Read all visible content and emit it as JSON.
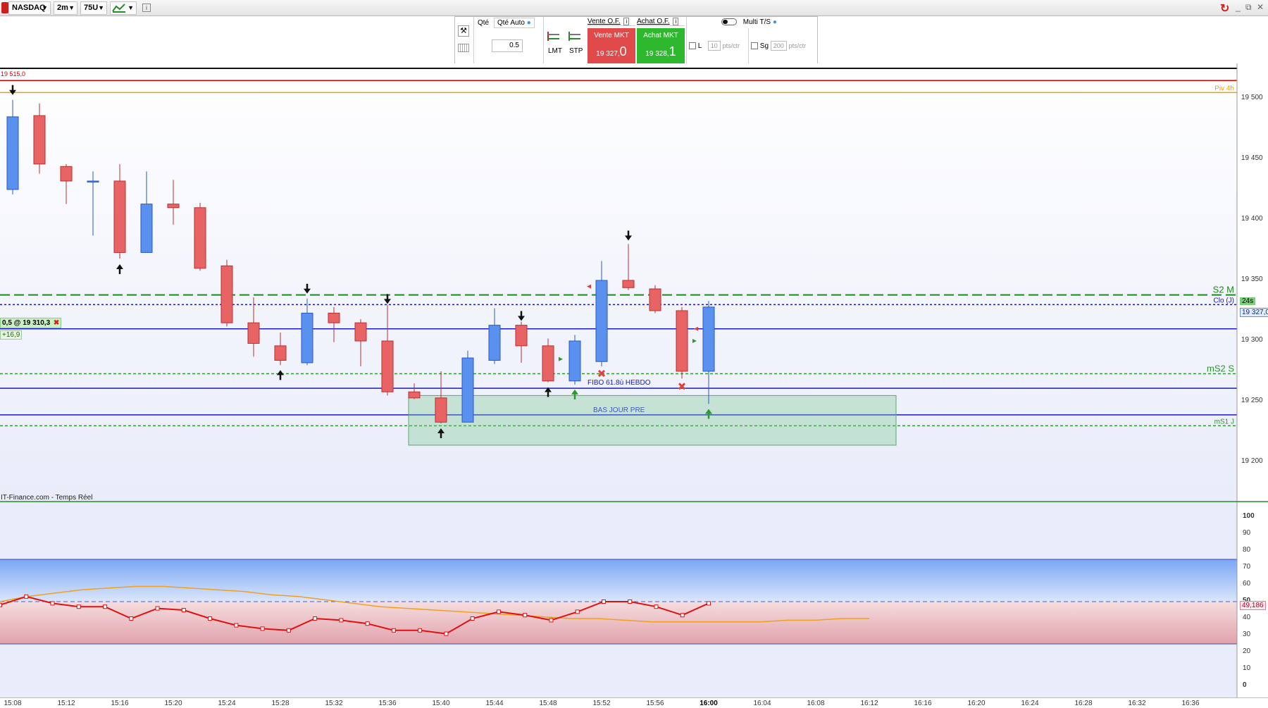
{
  "toolbar": {
    "symbol": "NASDAQ",
    "period": "2m",
    "units": "75U",
    "win_controls": [
      "_",
      "⧉",
      "✕"
    ]
  },
  "order_panel": {
    "qty_label": "Qté",
    "qty_auto_label": "Qté Auto",
    "qty_value": "0.5",
    "lmt_label": "LMT",
    "stp_label": "STP",
    "sell_of_label": "Vente O.F.",
    "buy_of_label": "Achat O.F.",
    "sell_mkt_label": "Vente MKT",
    "sell_mkt_price_small": "19 327,",
    "sell_mkt_price_big": "0",
    "buy_mkt_label": "Achat MKT",
    "buy_mkt_price_small": "19 328,",
    "buy_mkt_price_big": "1",
    "multi_ts_label": "Multi T/S",
    "l_label": "L",
    "l_value": "10",
    "l_unit": "pts/ctr",
    "sg_label": "Sg",
    "sg_value": "200",
    "sg_unit": "pts/ctr",
    "sell_color": "#e04a4a",
    "buy_color": "#2eb82e"
  },
  "chart": {
    "source_label": "IT-Finance.com - Temps Réel",
    "position_tag": "0,5 @ 19 310,3",
    "pnl_tag": "+16,9",
    "current_price_tag": "19 327,0",
    "countdown_tag": "24s",
    "high_line_tag": "19 515,0",
    "levels": [
      {
        "price": 19515,
        "label": "",
        "color": "#e00000",
        "style": "solid"
      },
      {
        "price": 19505,
        "label": "Piv 4h",
        "color": "#f0a000",
        "style": "solid"
      },
      {
        "price": 19338,
        "label": "S2 M",
        "color": "#1a8a1a",
        "style": "dashed-long"
      },
      {
        "price": 19330,
        "label": "Clo (J)",
        "color": "#1a1aa0",
        "style": "dotted"
      },
      {
        "price": 19310,
        "label": "",
        "color": "#1a1ad0",
        "style": "solid"
      },
      {
        "price": 19273,
        "label": "mS2 S",
        "color": "#2a9a2a",
        "style": "dashed"
      },
      {
        "price": 19261,
        "label": "FIBO 61.8ù HEBDO",
        "color": "#1a1ad0",
        "style": "solid"
      },
      {
        "price": 19239,
        "label": "BAS JOUR PRE",
        "color": "#1a1ad0",
        "style": "solid"
      },
      {
        "price": 19230,
        "label": "mS1 J",
        "color": "#2a9a2a",
        "style": "dashed"
      }
    ],
    "zone": {
      "price_top": 19255,
      "price_bottom": 19214,
      "time_start": "15:38",
      "time_end": "16:14"
    },
    "y_ticks": [
      "19 500",
      "19 450",
      "19 400",
      "19 350",
      "19 300",
      "19 250",
      "19 200"
    ],
    "x_ticks": [
      "15:08",
      "15:12",
      "15:16",
      "15:20",
      "15:24",
      "15:28",
      "15:32",
      "15:36",
      "15:40",
      "15:44",
      "15:48",
      "15:52",
      "15:56",
      "16:00",
      "16:04",
      "16:08",
      "16:12",
      "16:16",
      "16:20",
      "16:24",
      "16:28",
      "16:32",
      "16:36"
    ],
    "x_current": "16:00"
  },
  "chart_data": {
    "type": "candlestick",
    "x": [
      "15:08",
      "15:10",
      "15:12",
      "15:14",
      "15:16",
      "15:18",
      "15:20",
      "15:22",
      "15:24",
      "15:26",
      "15:28",
      "15:30",
      "15:32",
      "15:34",
      "15:36",
      "15:38",
      "15:40",
      "15:42",
      "15:44",
      "15:46",
      "15:48",
      "15:50",
      "15:52",
      "15:54",
      "15:56",
      "15:58",
      "16:00"
    ],
    "open": [
      19425,
      19486,
      19444,
      19432,
      19432,
      19373,
      19413,
      19410,
      19362,
      19315,
      19296,
      19282,
      19323,
      19315,
      19300,
      19258,
      19253,
      19233,
      19284,
      19313,
      19296,
      19267,
      19283,
      19350,
      19343,
      19325,
      19275
    ],
    "high": [
      19499,
      19496,
      19446,
      19440,
      19446,
      19440,
      19433,
      19414,
      19367,
      19336,
      19307,
      19335,
      19328,
      19318,
      19330,
      19265,
      19275,
      19292,
      19327,
      19316,
      19302,
      19305,
      19366,
      19380,
      19346,
      19328,
      19333
    ],
    "low": [
      19421,
      19438,
      19413,
      19387,
      19368,
      19373,
      19396,
      19358,
      19312,
      19287,
      19280,
      19280,
      19299,
      19279,
      19255,
      19252,
      19232,
      19233,
      19281,
      19282,
      19266,
      19264,
      19279,
      19342,
      19323,
      19269,
      19248
    ],
    "close": [
      19485,
      19446,
      19432,
      19432,
      19373,
      19413,
      19410,
      19360,
      19315,
      19298,
      19284,
      19323,
      19315,
      19300,
      19258,
      19253,
      19233,
      19286,
      19313,
      19296,
      19267,
      19300,
      19350,
      19344,
      19325,
      19275,
      19328
    ],
    "ylim": [
      19180,
      19515
    ],
    "oscillator": {
      "last_value": "49,186",
      "y_ticks": [
        "100",
        "90",
        "80",
        "70",
        "60",
        "50",
        "40",
        "30",
        "20",
        "10",
        "0"
      ],
      "ylim": [
        0,
        100
      ],
      "bands": [
        25,
        50,
        75
      ],
      "series": [
        {
          "color": "#e01010",
          "values": [
            48,
            53,
            49,
            47,
            47,
            40,
            46,
            45,
            40,
            36,
            34,
            33,
            40,
            39,
            37,
            33,
            33,
            31,
            40,
            44,
            42,
            39,
            44,
            50,
            50,
            47,
            42,
            49
          ]
        },
        {
          "color": "#f0a020",
          "values": [
            50,
            53,
            55,
            57,
            58,
            59,
            59,
            58,
            57,
            56,
            54,
            53,
            51,
            49,
            47,
            46,
            45,
            44,
            43,
            42,
            41,
            40,
            40,
            39,
            38,
            38,
            38,
            38,
            38,
            39,
            39,
            40,
            40
          ]
        }
      ]
    }
  }
}
